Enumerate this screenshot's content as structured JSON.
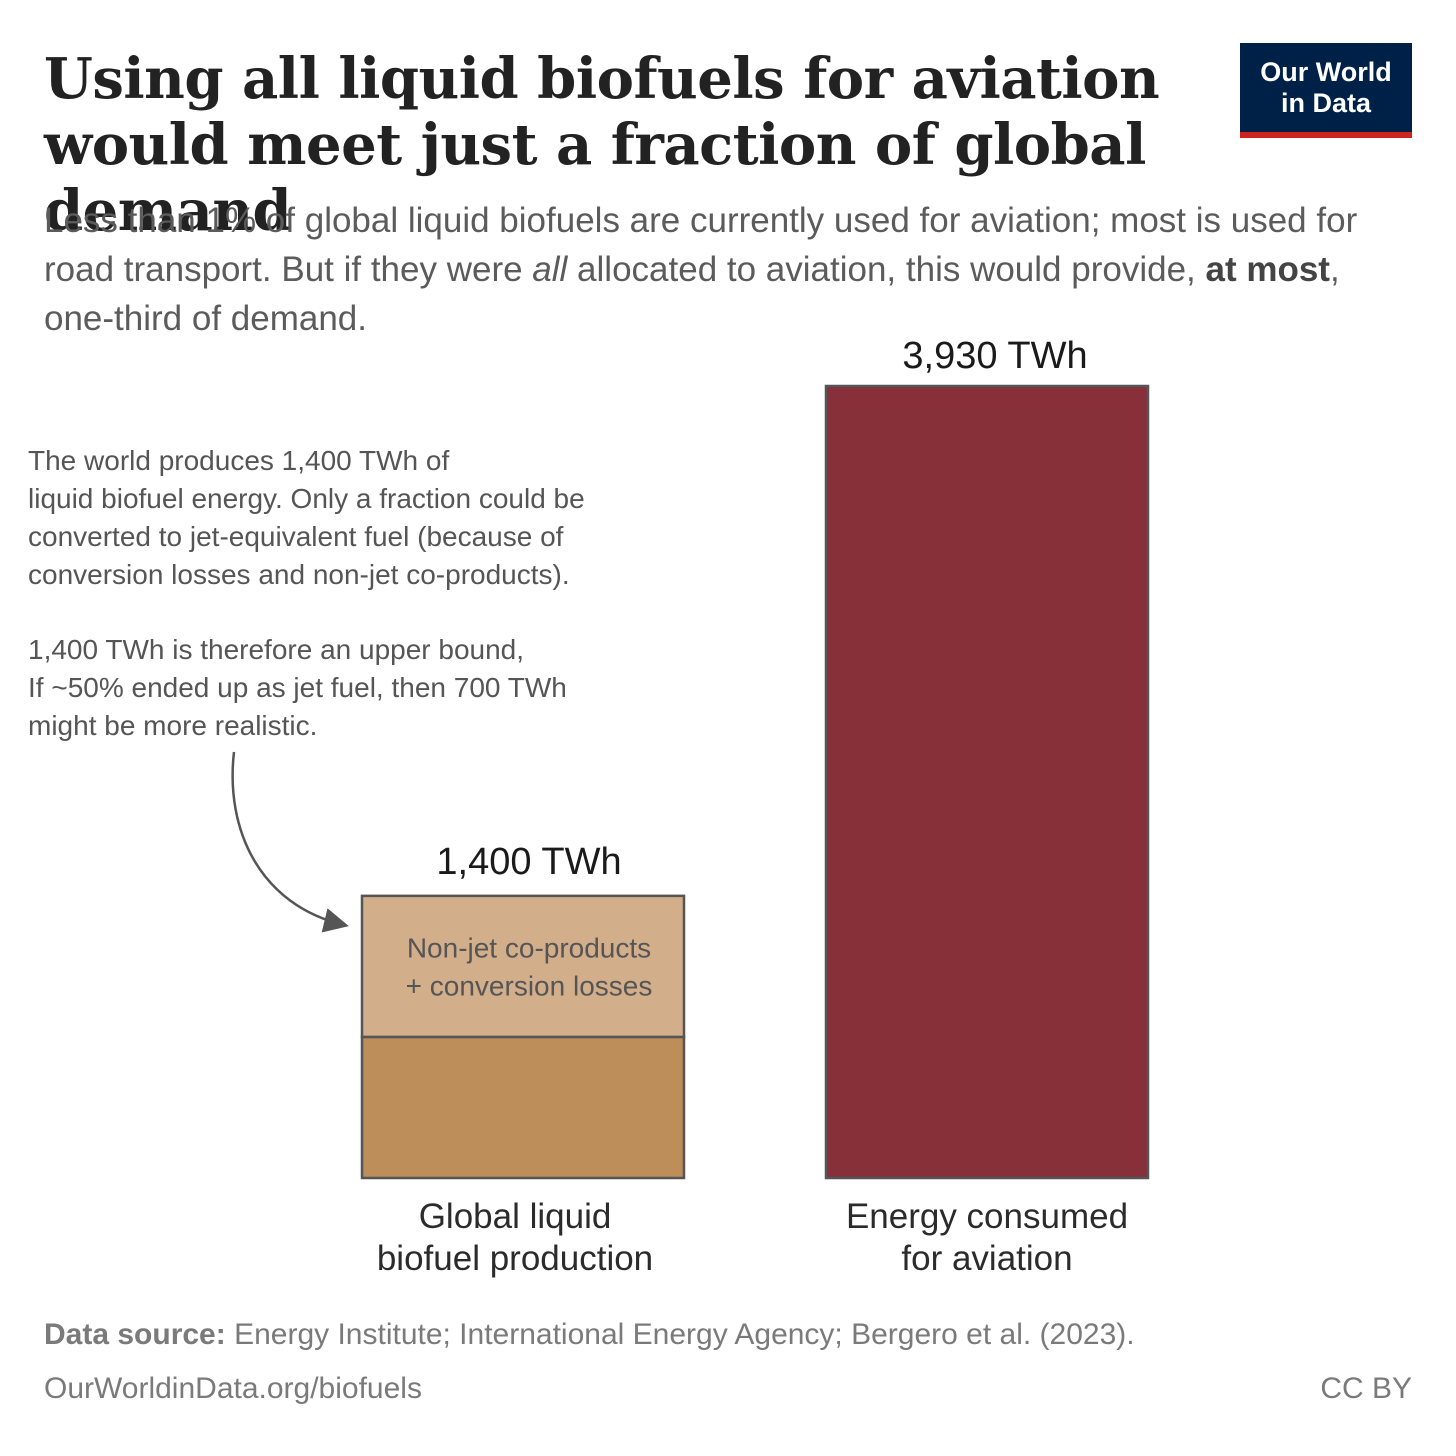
{
  "header": {
    "title": "Using all liquid biofuels for aviation would meet just a fraction of global demand",
    "subtitle_parts": {
      "p1": "Less than 1% of global liquid biofuels are currently used for aviation; most is used for road transport. But if they were ",
      "italic": "all",
      "p2": " allocated to aviation, this would provide, ",
      "bold": "at most",
      "p3": ", one-third of demand."
    }
  },
  "logo": {
    "line1": "Our World",
    "line2": "in Data",
    "bg_color": "#002147",
    "accent_color": "#ce261e"
  },
  "annotation": {
    "para1": [
      "The world produces 1,400 TWh of",
      "liquid biofuel energy. Only a fraction could be",
      "converted to jet-equivalent fuel (because of",
      "conversion losses and non-jet co-products)."
    ],
    "para2": [
      "1,400 TWh is therefore an upper bound,",
      "If ~50% ended up as jet fuel, then 700 TWh",
      "might be more realistic."
    ]
  },
  "chart_data": {
    "type": "bar",
    "categories": [
      "Global liquid biofuel production",
      "Energy consumed for aviation"
    ],
    "category_labels": [
      [
        "Global liquid",
        "biofuel production"
      ],
      [
        "Energy consumed",
        "for aviation"
      ]
    ],
    "values": [
      1400,
      3930
    ],
    "unit": "TWh",
    "value_labels": [
      "1,400 TWh",
      "3,930 TWh"
    ],
    "segments": [
      {
        "name": "Non-jet co-products + conversion losses",
        "label_lines": [
          "Non-jet co-products",
          "+ conversion losses"
        ],
        "value": 700,
        "color": "#d3ae8b"
      },
      {
        "name": "",
        "value": 700,
        "color": "#bd8e5a"
      }
    ],
    "colors": {
      "aviation": "#87303a",
      "outline": "#555555"
    },
    "grid": false,
    "legend": "none"
  },
  "footer": {
    "source_label": "Data source:",
    "source_text": " Energy Institute; International Energy Agency; Bergero et al. (2023).",
    "url": "OurWorldinData.org/biofuels",
    "license": "CC BY"
  }
}
